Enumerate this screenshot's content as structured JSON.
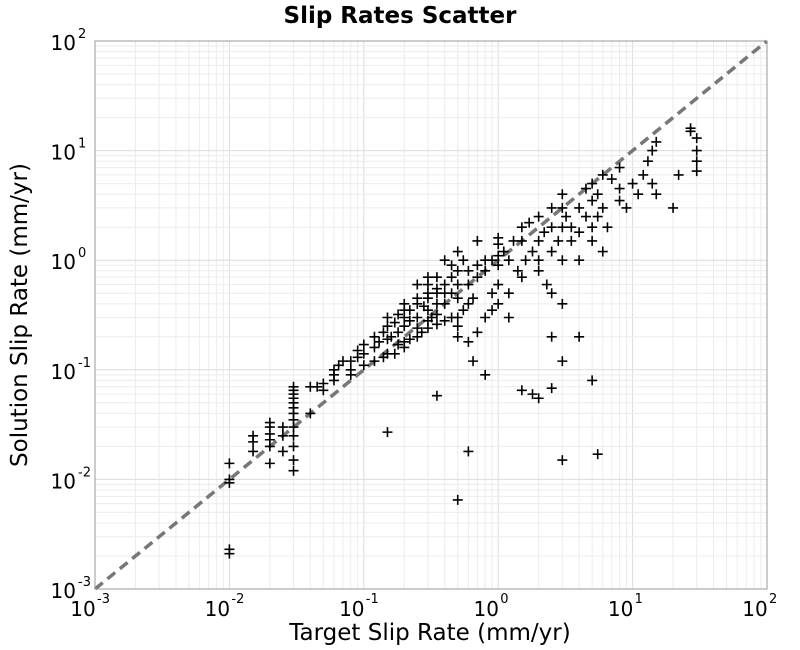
{
  "chart_data": {
    "type": "scatter",
    "title": "Slip Rates Scatter",
    "xlabel": "Target Slip Rate (mm/yr)",
    "ylabel": "Solution Slip Rate (mm/yr)",
    "xscale": "log",
    "yscale": "log",
    "xlim": [
      0.001,
      100
    ],
    "ylim": [
      0.001,
      100
    ],
    "grid": true,
    "marker": "+",
    "marker_color": "#000000",
    "reference_line": {
      "style": "dashed",
      "color": "#777777",
      "x": [
        0.001,
        100
      ],
      "y": [
        0.001,
        100
      ]
    },
    "x_ticks": [
      {
        "base": "10",
        "exp": "-3"
      },
      {
        "base": "10",
        "exp": "-2"
      },
      {
        "base": "10",
        "exp": "-1"
      },
      {
        "base": "10",
        "exp": "0"
      },
      {
        "base": "10",
        "exp": "1"
      },
      {
        "base": "10",
        "exp": "2"
      }
    ],
    "y_ticks": [
      {
        "base": "10",
        "exp": "-3"
      },
      {
        "base": "10",
        "exp": "-2"
      },
      {
        "base": "10",
        "exp": "-1"
      },
      {
        "base": "10",
        "exp": "0"
      },
      {
        "base": "10",
        "exp": "1"
      },
      {
        "base": "10",
        "exp": "2"
      }
    ],
    "series": [
      {
        "points": [
          [
            0.01,
            0.0021
          ],
          [
            0.01,
            0.0023
          ],
          [
            0.01,
            0.0093
          ],
          [
            0.01,
            0.01
          ],
          [
            0.01,
            0.014
          ],
          [
            0.015,
            0.018
          ],
          [
            0.015,
            0.022
          ],
          [
            0.015,
            0.025
          ],
          [
            0.02,
            0.014
          ],
          [
            0.02,
            0.02
          ],
          [
            0.02,
            0.023
          ],
          [
            0.02,
            0.026
          ],
          [
            0.02,
            0.03
          ],
          [
            0.02,
            0.033
          ],
          [
            0.025,
            0.018
          ],
          [
            0.025,
            0.025
          ],
          [
            0.025,
            0.03
          ],
          [
            0.03,
            0.012
          ],
          [
            0.03,
            0.015
          ],
          [
            0.03,
            0.02
          ],
          [
            0.03,
            0.025
          ],
          [
            0.03,
            0.03
          ],
          [
            0.03,
            0.035
          ],
          [
            0.03,
            0.04
          ],
          [
            0.03,
            0.045
          ],
          [
            0.03,
            0.05
          ],
          [
            0.03,
            0.055
          ],
          [
            0.03,
            0.06
          ],
          [
            0.03,
            0.065
          ],
          [
            0.03,
            0.07
          ],
          [
            0.04,
            0.04
          ],
          [
            0.04,
            0.07
          ],
          [
            0.045,
            0.07
          ],
          [
            0.05,
            0.065
          ],
          [
            0.05,
            0.075
          ],
          [
            0.06,
            0.08
          ],
          [
            0.06,
            0.09
          ],
          [
            0.06,
            0.1
          ],
          [
            0.065,
            0.11
          ],
          [
            0.07,
            0.12
          ],
          [
            0.08,
            0.09
          ],
          [
            0.08,
            0.1
          ],
          [
            0.08,
            0.12
          ],
          [
            0.09,
            0.13
          ],
          [
            0.09,
            0.15
          ],
          [
            0.1,
            0.11
          ],
          [
            0.1,
            0.14
          ],
          [
            0.1,
            0.17
          ],
          [
            0.12,
            0.16
          ],
          [
            0.12,
            0.2
          ],
          [
            0.13,
            0.18
          ],
          [
            0.14,
            0.22
          ],
          [
            0.15,
            0.25
          ],
          [
            0.15,
            0.3
          ],
          [
            0.16,
            0.2
          ],
          [
            0.17,
            0.27
          ],
          [
            0.18,
            0.22
          ],
          [
            0.18,
            0.32
          ],
          [
            0.2,
            0.25
          ],
          [
            0.2,
            0.3
          ],
          [
            0.2,
            0.35
          ],
          [
            0.2,
            0.4
          ],
          [
            0.22,
            0.28
          ],
          [
            0.22,
            0.35
          ],
          [
            0.25,
            0.3
          ],
          [
            0.25,
            0.4
          ],
          [
            0.25,
            0.45
          ],
          [
            0.28,
            0.38
          ],
          [
            0.3,
            0.35
          ],
          [
            0.3,
            0.45
          ],
          [
            0.3,
            0.5
          ],
          [
            0.32,
            0.3
          ],
          [
            0.35,
            0.4
          ],
          [
            0.35,
            0.55
          ],
          [
            0.4,
            0.4
          ],
          [
            0.4,
            0.5
          ],
          [
            0.4,
            0.6
          ],
          [
            0.45,
            0.5
          ],
          [
            0.45,
            0.7
          ],
          [
            0.5,
            0.45
          ],
          [
            0.5,
            0.6
          ],
          [
            0.5,
            0.8
          ],
          [
            0.12,
            0.12
          ],
          [
            0.14,
            0.13
          ],
          [
            0.15,
            0.14
          ],
          [
            0.17,
            0.14
          ],
          [
            0.2,
            0.18
          ],
          [
            0.22,
            0.19
          ],
          [
            0.25,
            0.2
          ],
          [
            0.27,
            0.22
          ],
          [
            0.3,
            0.24
          ],
          [
            0.35,
            0.26
          ],
          [
            0.4,
            0.28
          ],
          [
            0.45,
            0.3
          ],
          [
            0.15,
            0.19
          ],
          [
            0.18,
            0.17
          ],
          [
            0.2,
            0.16
          ],
          [
            0.25,
            0.24
          ],
          [
            0.3,
            0.28
          ],
          [
            0.35,
            0.32
          ],
          [
            0.5,
            0.2
          ],
          [
            0.5,
            0.25
          ],
          [
            0.5,
            0.3
          ],
          [
            0.55,
            0.35
          ],
          [
            0.6,
            0.4
          ],
          [
            0.65,
            0.45
          ],
          [
            0.6,
            0.6
          ],
          [
            0.6,
            0.8
          ],
          [
            0.7,
            0.9
          ],
          [
            0.7,
            0.7
          ],
          [
            0.8,
            1.0
          ],
          [
            0.8,
            0.8
          ],
          [
            0.6,
            0.18
          ],
          [
            0.65,
            0.12
          ],
          [
            0.7,
            0.22
          ],
          [
            0.8,
            0.3
          ],
          [
            0.9,
            0.35
          ],
          [
            0.9,
            0.5
          ],
          [
            0.9,
            1.0
          ],
          [
            1.0,
            1.1
          ],
          [
            1.0,
            0.9
          ],
          [
            1.0,
            1.4
          ],
          [
            1.0,
            0.4
          ],
          [
            1.0,
            0.6
          ],
          [
            1.1,
            1.2
          ],
          [
            1.2,
            1.0
          ],
          [
            1.2,
            0.3
          ],
          [
            1.2,
            0.5
          ],
          [
            1.3,
            1.5
          ],
          [
            1.4,
            0.8
          ],
          [
            1.5,
            1.5
          ],
          [
            1.5,
            2.0
          ],
          [
            1.5,
            0.7
          ],
          [
            1.6,
            1.0
          ],
          [
            1.7,
            2.2
          ],
          [
            1.8,
            1.2
          ],
          [
            2.0,
            1.0
          ],
          [
            2.0,
            1.5
          ],
          [
            2.0,
            2.5
          ],
          [
            2.0,
            0.8
          ],
          [
            2.2,
            1.8
          ],
          [
            2.3,
            0.6
          ],
          [
            2.5,
            2.0
          ],
          [
            2.5,
            3.0
          ],
          [
            2.5,
            1.2
          ],
          [
            2.5,
            0.5
          ],
          [
            2.8,
            1.5
          ],
          [
            3.0,
            2.0
          ],
          [
            3.0,
            1.0
          ],
          [
            3.0,
            0.4
          ],
          [
            3.0,
            3.0
          ],
          [
            3.2,
            2.5
          ],
          [
            3.5,
            2.0
          ],
          [
            3.5,
            1.5
          ],
          [
            4.0,
            3.0
          ],
          [
            4.0,
            1.8
          ],
          [
            4.0,
            1.0
          ],
          [
            4.5,
            2.5
          ],
          [
            5.0,
            3.5
          ],
          [
            5.0,
            2.0
          ],
          [
            5.0,
            1.5
          ],
          [
            5.5,
            4.0
          ],
          [
            5.5,
            2.5
          ],
          [
            6.0,
            3.0
          ],
          [
            6.0,
            1.2
          ],
          [
            6.5,
            2.0
          ],
          [
            8.0,
            3.5
          ],
          [
            8.0,
            4.5
          ],
          [
            9.0,
            3.0
          ],
          [
            10.0,
            5.0
          ],
          [
            11.0,
            4.0
          ],
          [
            12.0,
            6.0
          ],
          [
            13.0,
            8.0
          ],
          [
            14.0,
            10.0
          ],
          [
            14.0,
            5.0
          ],
          [
            15.0,
            12.0
          ],
          [
            15.0,
            4.0
          ],
          [
            20.0,
            3.0
          ],
          [
            22.0,
            6.0
          ],
          [
            27.0,
            16.0
          ],
          [
            27.0,
            15.0
          ],
          [
            30.0,
            13.0
          ],
          [
            30.0,
            10.0
          ],
          [
            30.0,
            8.0
          ],
          [
            30.0,
            6.5
          ],
          [
            0.15,
            0.027
          ],
          [
            0.35,
            0.058
          ],
          [
            0.5,
            0.0065
          ],
          [
            0.6,
            0.018
          ],
          [
            0.8,
            0.09
          ],
          [
            1.5,
            0.065
          ],
          [
            1.8,
            0.06
          ],
          [
            2.0,
            0.055
          ],
          [
            2.5,
            0.068
          ],
          [
            3.0,
            0.12
          ],
          [
            3.0,
            0.015
          ],
          [
            5.5,
            0.017
          ],
          [
            5.0,
            0.08
          ],
          [
            4.0,
            0.2
          ],
          [
            2.5,
            0.2
          ],
          [
            0.7,
            1.5
          ],
          [
            1.0,
            1.6
          ],
          [
            0.5,
            1.2
          ],
          [
            0.4,
            1.0
          ],
          [
            0.3,
            0.7
          ],
          [
            3.0,
            4.0
          ],
          [
            4.5,
            4.5
          ],
          [
            5.0,
            5.0
          ],
          [
            6.0,
            6.0
          ],
          [
            7.0,
            5.5
          ],
          [
            8.0,
            7.0
          ],
          [
            0.45,
            0.9
          ],
          [
            0.55,
            1.0
          ],
          [
            0.25,
            0.6
          ],
          [
            0.3,
            0.6
          ],
          [
            0.35,
            0.5
          ],
          [
            0.35,
            0.7
          ]
        ]
      }
    ]
  }
}
